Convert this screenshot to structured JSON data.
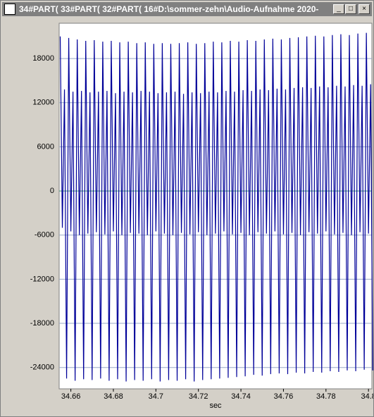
{
  "window": {
    "title": "34#PART( 33#PART( 32#PART( 16#D:\\sommer-zehn\\Audio-Aufnahme 2020-"
  },
  "chart_data": {
    "type": "line",
    "x_label": "sec",
    "x": [
      34.655,
      34.656,
      34.657,
      34.658,
      34.659,
      34.66,
      34.661,
      34.662,
      34.663,
      34.664,
      34.665,
      34.666,
      34.667,
      34.668,
      34.669,
      34.67,
      34.671,
      34.672,
      34.673,
      34.674,
      34.675,
      34.676,
      34.677,
      34.678,
      34.679,
      34.68,
      34.681,
      34.682,
      34.683,
      34.684,
      34.685,
      34.686,
      34.687,
      34.688,
      34.689,
      34.69,
      34.691,
      34.692,
      34.693,
      34.694,
      34.695,
      34.696,
      34.697,
      34.698,
      34.699,
      34.7,
      34.701,
      34.702,
      34.703,
      34.704,
      34.705,
      34.706,
      34.707,
      34.708,
      34.709,
      34.71,
      34.711,
      34.712,
      34.713,
      34.714,
      34.715,
      34.716,
      34.717,
      34.718,
      34.719,
      34.72,
      34.721,
      34.722,
      34.723,
      34.724,
      34.725,
      34.726,
      34.727,
      34.728,
      34.729,
      34.73,
      34.731,
      34.732,
      34.733,
      34.734,
      34.735,
      34.736,
      34.737,
      34.738,
      34.739,
      34.74,
      34.741,
      34.742,
      34.743,
      34.744,
      34.745,
      34.746,
      34.747,
      34.748,
      34.749,
      34.75,
      34.751,
      34.752,
      34.753,
      34.754,
      34.755,
      34.756,
      34.757,
      34.758,
      34.759,
      34.76,
      34.761,
      34.762,
      34.763,
      34.764,
      34.765,
      34.766,
      34.767,
      34.768,
      34.769,
      34.77,
      34.771,
      34.772,
      34.773,
      34.774,
      34.775,
      34.776,
      34.777,
      34.778,
      34.779,
      34.78,
      34.781,
      34.782,
      34.783,
      34.784,
      34.785,
      34.786,
      34.787,
      34.788,
      34.789,
      34.79,
      34.791,
      34.792,
      34.793,
      34.794,
      34.795,
      34.796,
      34.797,
      34.798,
      34.799,
      34.8,
      34.801,
      34.802
    ],
    "series": [
      {
        "color": "#000099",
        "values": [
          21000,
          -5000,
          13800,
          -25500,
          20800,
          -5500,
          13500,
          -25800,
          20600,
          -6000,
          13600,
          -25600,
          20400,
          -5800,
          13400,
          -25700,
          20500,
          -5600,
          13500,
          -25500,
          20300,
          -5900,
          13600,
          -25800,
          20400,
          -5500,
          13300,
          -25600,
          20200,
          -6000,
          13500,
          -25900,
          20300,
          -5700,
          13400,
          -25700,
          20100,
          -5800,
          13600,
          -25800,
          20200,
          -6000,
          13500,
          -25600,
          20000,
          -5500,
          13300,
          -25900,
          20100,
          -5800,
          13400,
          -25700,
          20000,
          -6000,
          13500,
          -25800,
          20100,
          -5700,
          13200,
          -25600,
          20200,
          -5900,
          13400,
          -25900,
          20000,
          -5600,
          13300,
          -25700,
          20100,
          -6000,
          13500,
          -25600,
          20300,
          -5800,
          13400,
          -25500,
          20200,
          -5500,
          13600,
          -25400,
          20400,
          -5900,
          13500,
          -25300,
          20300,
          -5700,
          13700,
          -25200,
          20500,
          -6000,
          13600,
          -25000,
          20400,
          -5600,
          13800,
          -25100,
          20600,
          -5800,
          13700,
          -24900,
          20700,
          -5500,
          13900,
          -24800,
          20600,
          -5900,
          13800,
          -24900,
          20800,
          -5700,
          14000,
          -24700,
          20900,
          -6000,
          14100,
          -24800,
          21000,
          -5600,
          14000,
          -24600,
          21100,
          -5800,
          14200,
          -24700,
          21000,
          -5500,
          14100,
          -24500,
          21200,
          -5900,
          14300,
          -24600,
          21300,
          -5700,
          14200,
          -24400,
          21200,
          -6000,
          14400,
          -24500,
          21400,
          -5600,
          14300,
          -24300,
          21500,
          -5800,
          14500,
          -24400
        ]
      }
    ],
    "xlim": [
      34.6545,
      34.8016
    ],
    "xticks": [
      34.66,
      34.68,
      34.7,
      34.72,
      34.74,
      34.76,
      34.78,
      34.8
    ],
    "ylim": [
      -26900,
      22800
    ],
    "yticks": [
      -24000,
      -18000,
      -12000,
      -6000,
      0,
      6000,
      12000,
      18000
    ],
    "grid": true,
    "grid_color": "#9aa8c8",
    "zero_line_color": "#3c9a78"
  }
}
